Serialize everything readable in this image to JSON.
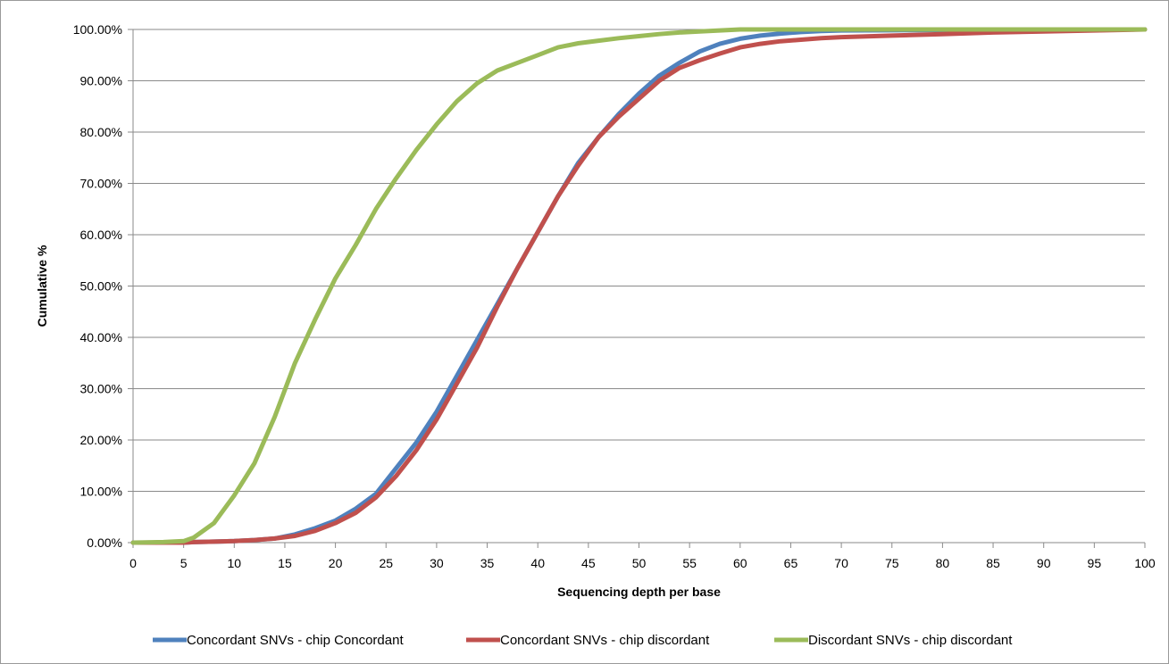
{
  "chart_data": {
    "type": "line",
    "title": "",
    "xlabel": "Sequencing depth per base",
    "ylabel": "Cumulative %",
    "xlim": [
      0,
      100
    ],
    "ylim": [
      0,
      100
    ],
    "x_ticks": [
      0,
      5,
      10,
      15,
      20,
      25,
      30,
      35,
      40,
      45,
      50,
      55,
      60,
      65,
      70,
      75,
      80,
      85,
      90,
      95,
      100
    ],
    "x_tick_labels": [
      "0",
      "5",
      "10",
      "15",
      "20",
      "25",
      "30",
      "35",
      "40",
      "45",
      "50",
      "55",
      "60",
      "65",
      "70",
      "75",
      "80",
      "85",
      "90",
      "95",
      "100"
    ],
    "y_ticks": [
      0,
      10,
      20,
      30,
      40,
      50,
      60,
      70,
      80,
      90,
      100
    ],
    "y_tick_labels": [
      "0.00%",
      "10.00%",
      "20.00%",
      "30.00%",
      "40.00%",
      "50.00%",
      "60.00%",
      "70.00%",
      "80.00%",
      "90.00%",
      "100.00%"
    ],
    "grid": "horizontal",
    "legend_position": "bottom",
    "series": [
      {
        "name": "Concordant SNVs - chip Concordant",
        "color": "#4f81bd",
        "x": [
          0,
          5,
          6,
          8,
          10,
          12,
          14,
          16,
          18,
          20,
          22,
          24,
          26,
          28,
          30,
          32,
          34,
          36,
          38,
          40,
          42,
          44,
          46,
          48,
          50,
          52,
          54,
          56,
          58,
          60,
          62,
          64,
          66,
          68,
          70,
          75,
          80,
          85,
          90,
          95,
          100
        ],
        "y": [
          0,
          0,
          0.1,
          0.2,
          0.3,
          0.5,
          0.8,
          1.6,
          2.8,
          4.3,
          6.6,
          9.5,
          14.5,
          19.5,
          25.5,
          32.5,
          39.5,
          46.5,
          53.5,
          60.5,
          67.5,
          74,
          79,
          83.5,
          87.5,
          91,
          93.5,
          95.7,
          97.2,
          98.2,
          98.8,
          99.2,
          99.5,
          99.7,
          99.8,
          99.85,
          99.9,
          99.95,
          100,
          100,
          100
        ]
      },
      {
        "name": "Concordant SNVs - chip discordant",
        "color": "#c0504d",
        "x": [
          0,
          5,
          6,
          8,
          10,
          12,
          14,
          16,
          18,
          20,
          22,
          24,
          26,
          28,
          30,
          32,
          34,
          36,
          38,
          40,
          42,
          44,
          46,
          48,
          50,
          52,
          54,
          56,
          58,
          60,
          62,
          64,
          66,
          68,
          70,
          75,
          80,
          85,
          90,
          95,
          100
        ],
        "y": [
          0,
          0,
          0.1,
          0.2,
          0.3,
          0.5,
          0.8,
          1.3,
          2.3,
          3.8,
          5.8,
          8.8,
          13,
          18,
          24,
          31,
          38,
          46,
          53.5,
          60.5,
          67.5,
          73.5,
          79,
          83,
          86.5,
          90,
          92.5,
          94,
          95.3,
          96.5,
          97.2,
          97.7,
          98,
          98.3,
          98.5,
          98.8,
          99.1,
          99.4,
          99.6,
          99.8,
          100
        ]
      },
      {
        "name": "Discordant SNVs - chip discordant",
        "color": "#9bbb59",
        "x": [
          0,
          3,
          5,
          6,
          8,
          10,
          12,
          14,
          16,
          18,
          20,
          22,
          24,
          26,
          28,
          30,
          32,
          34,
          36,
          38,
          40,
          42,
          44,
          46,
          48,
          50,
          52,
          54,
          56,
          58,
          60,
          65,
          70,
          80,
          90,
          100
        ],
        "y": [
          0,
          0.1,
          0.3,
          1,
          3.8,
          9.2,
          15.5,
          24.5,
          35,
          43.5,
          51.5,
          58,
          65,
          71,
          76.5,
          81.5,
          86,
          89.5,
          92,
          93.5,
          95,
          96.5,
          97.3,
          97.8,
          98.3,
          98.7,
          99.1,
          99.4,
          99.6,
          99.8,
          100,
          100,
          100,
          100,
          100,
          100
        ]
      }
    ]
  }
}
